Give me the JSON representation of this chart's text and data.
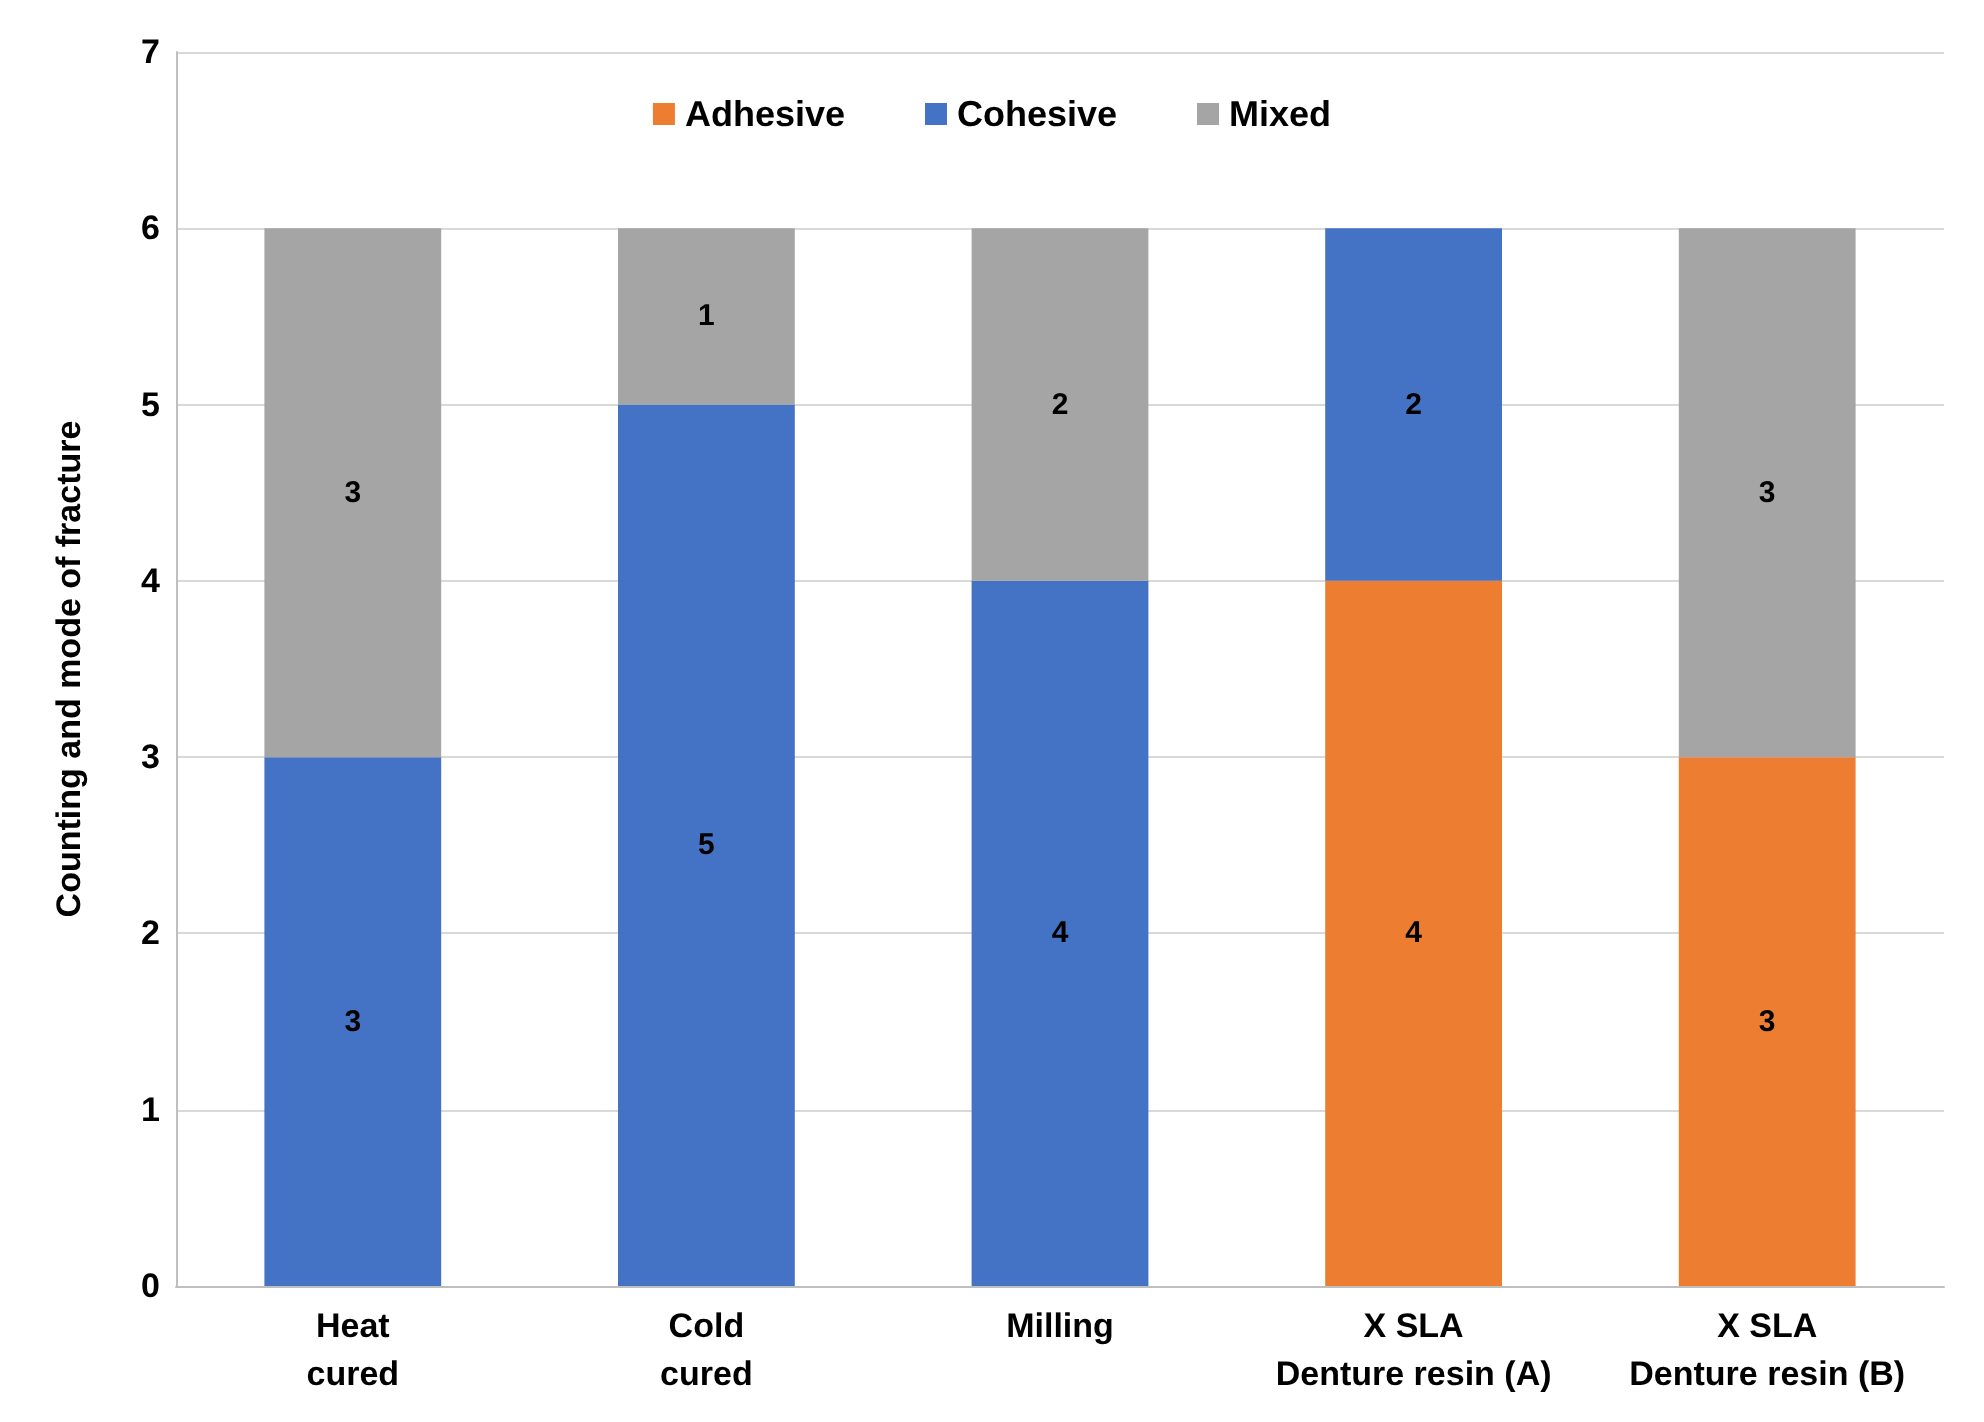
{
  "chart_data": {
    "type": "bar",
    "stacked": true,
    "ylabel": "Counting and mode of fracture",
    "categories": [
      "Heat\ncured",
      "Cold\ncured",
      "Milling",
      "X SLA\nDenture resin (A)",
      "X SLA\nDenture resin (B)"
    ],
    "series": [
      {
        "name": "Adhesive",
        "color": "#ed7d31",
        "values": [
          0,
          0,
          0,
          4,
          3
        ],
        "value_labels": [
          null,
          null,
          null,
          "4",
          "3"
        ]
      },
      {
        "name": "Cohesive",
        "color": "#4472c4",
        "values": [
          3,
          5,
          4,
          2,
          0
        ],
        "value_labels": [
          "3",
          "5",
          "4",
          "2",
          null
        ]
      },
      {
        "name": "Mixed",
        "color": "#a5a5a5",
        "values": [
          3,
          1,
          2,
          0,
          3
        ],
        "value_labels": [
          "3",
          "1",
          "2",
          null,
          "3"
        ]
      }
    ],
    "ylim": [
      0,
      7
    ],
    "yticks": [
      0,
      1,
      2,
      3,
      4,
      5,
      6,
      7
    ],
    "grid": "y",
    "legend": "top"
  }
}
